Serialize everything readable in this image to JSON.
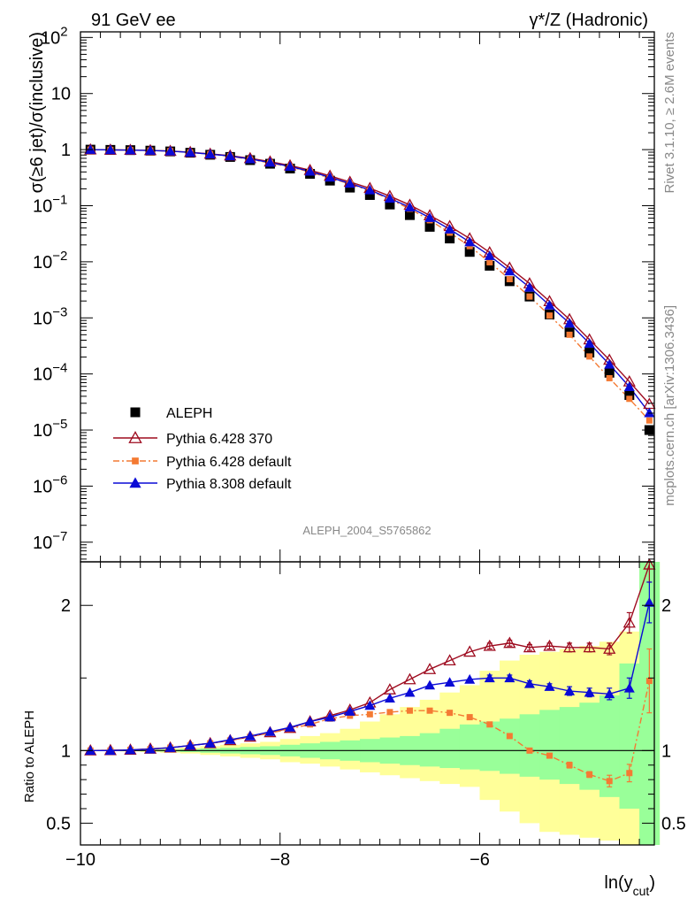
{
  "header": {
    "left": "91 GeV ee",
    "right": "γ*/Z (Hadronic)"
  },
  "side_text": {
    "rivet": "Rivet 3.1.10, ≥ 2.6M events",
    "mcplots": "mcplots.cern.ch [arXiv:1306.3436]"
  },
  "analysis_tag": "ALEPH_2004_S5765862",
  "chart_data": {
    "type": "line",
    "x_axis": {
      "label_base": "ln(y",
      "label_sub": "cut",
      "label_close": ")",
      "range": [
        -10.0,
        -4.25
      ],
      "ticks": [
        -10,
        -8,
        -6
      ],
      "tick_labels": [
        "−10",
        "−8",
        "−6"
      ]
    },
    "main_panel": {
      "ylabel": "σ(≥6 jet)/σ(inclusive)",
      "yscale": "log",
      "yrange_log10": [
        -7.35,
        2.1
      ],
      "ytick_exponents": [
        -7,
        -6,
        -5,
        -4,
        -3,
        -2,
        -1,
        0,
        1,
        2
      ],
      "ytick_labels": [
        {
          "base": "10",
          "exp": "−7"
        },
        {
          "base": "10",
          "exp": "−6"
        },
        {
          "base": "10",
          "exp": "−5"
        },
        {
          "base": "10",
          "exp": "−4"
        },
        {
          "base": "10",
          "exp": "−3"
        },
        {
          "base": "10",
          "exp": "−2"
        },
        {
          "base": "10",
          "exp": "−1"
        },
        {
          "base": "1",
          "exp": ""
        },
        {
          "base": "10",
          "exp": ""
        },
        {
          "base": "10",
          "exp": "2"
        }
      ]
    },
    "ratio_panel": {
      "ylabel": "Ratio to ALEPH",
      "yrange": [
        0.35,
        2.3
      ],
      "yticks": [
        0.5,
        1,
        2
      ],
      "ytick_labels": [
        "0.5",
        "1",
        "2"
      ],
      "reference": 1.0
    },
    "x": [
      -9.9,
      -9.7,
      -9.5,
      -9.3,
      -9.1,
      -8.9,
      -8.7,
      -8.5,
      -8.3,
      -8.1,
      -7.9,
      -7.7,
      -7.5,
      -7.3,
      -7.1,
      -6.9,
      -6.7,
      -6.5,
      -6.3,
      -6.1,
      -5.9,
      -5.7,
      -5.5,
      -5.3,
      -5.1,
      -4.9,
      -4.7,
      -4.5,
      -4.3
    ],
    "band": {
      "bin_edges": [
        -10.0,
        -9.8,
        -9.6,
        -9.4,
        -9.2,
        -9.0,
        -8.8,
        -8.6,
        -8.4,
        -8.2,
        -8.0,
        -7.8,
        -7.6,
        -7.4,
        -7.2,
        -7.0,
        -6.8,
        -6.6,
        -6.4,
        -6.2,
        -6.0,
        -5.8,
        -5.6,
        -5.4,
        -5.2,
        -5.0,
        -4.8,
        -4.6,
        -4.4,
        -4.2
      ],
      "green_low": [
        1.0,
        0.998,
        0.997,
        0.995,
        0.993,
        0.99,
        0.985,
        0.98,
        0.975,
        0.97,
        0.96,
        0.95,
        0.94,
        0.93,
        0.92,
        0.91,
        0.9,
        0.89,
        0.88,
        0.87,
        0.86,
        0.84,
        0.82,
        0.8,
        0.77,
        0.73,
        0.68,
        0.6,
        0.35
      ],
      "green_high": [
        1.0,
        1.002,
        1.003,
        1.005,
        1.007,
        1.01,
        1.015,
        1.02,
        1.025,
        1.03,
        1.04,
        1.05,
        1.06,
        1.07,
        1.08,
        1.09,
        1.1,
        1.12,
        1.15,
        1.18,
        1.2,
        1.22,
        1.25,
        1.28,
        1.3,
        1.33,
        1.38,
        1.6,
        2.3
      ],
      "yellow_low": [
        1.0,
        0.997,
        0.994,
        0.99,
        0.985,
        0.98,
        0.97,
        0.96,
        0.95,
        0.94,
        0.92,
        0.91,
        0.89,
        0.87,
        0.85,
        0.83,
        0.81,
        0.79,
        0.77,
        0.75,
        0.66,
        0.58,
        0.5,
        0.44,
        0.42,
        0.4,
        0.38,
        0.35,
        0.35
      ],
      "yellow_high": [
        1.0,
        1.003,
        1.006,
        1.01,
        1.015,
        1.02,
        1.03,
        1.04,
        1.05,
        1.06,
        1.08,
        1.1,
        1.12,
        1.15,
        1.2,
        1.25,
        1.3,
        1.35,
        1.4,
        1.45,
        1.55,
        1.62,
        1.66,
        1.68,
        1.7,
        1.72,
        1.75,
        1.82,
        2.3
      ]
    },
    "series": [
      {
        "name": "ALEPH",
        "marker": "square",
        "color": "#000000",
        "values": [
          1.0,
          0.99,
          0.98,
          0.96,
          0.93,
          0.88,
          0.81,
          0.74,
          0.65,
          0.56,
          0.46,
          0.37,
          0.28,
          0.21,
          0.155,
          0.105,
          0.068,
          0.042,
          0.026,
          0.015,
          0.0085,
          0.0045,
          0.0024,
          0.00115,
          0.00055,
          0.00024,
          0.000105,
          4.2e-05,
          1e-05
        ]
      },
      {
        "name": "Pythia 6.428 370",
        "marker": "open-triangle",
        "color": "#9e0b1f",
        "values": [
          1.0,
          0.99,
          0.985,
          0.97,
          0.945,
          0.9,
          0.84,
          0.78,
          0.7,
          0.61,
          0.52,
          0.43,
          0.34,
          0.265,
          0.205,
          0.148,
          0.103,
          0.067,
          0.043,
          0.026,
          0.0147,
          0.0078,
          0.0041,
          0.00197,
          0.00094,
          0.00041,
          0.000178,
          7.3e-05,
          2.9e-05
        ],
        "ratio": [
          1.0,
          1.002,
          1.005,
          1.012,
          1.02,
          1.035,
          1.05,
          1.07,
          1.095,
          1.125,
          1.155,
          1.2,
          1.24,
          1.28,
          1.33,
          1.42,
          1.49,
          1.56,
          1.62,
          1.68,
          1.72,
          1.74,
          1.71,
          1.72,
          1.71,
          1.71,
          1.7,
          1.88,
          2.28
        ],
        "ratio_err": [
          0,
          0,
          0,
          0,
          0,
          0,
          0,
          0,
          0,
          0,
          0,
          0,
          0,
          0,
          0,
          0,
          0,
          0,
          0,
          0,
          0.02,
          0.02,
          0.02,
          0.02,
          0.03,
          0.03,
          0.04,
          0.07,
          0.12
        ]
      },
      {
        "name": "Pythia 6.428 default",
        "marker": "square-small",
        "color": "#f47a33",
        "dashed": true,
        "values": [
          1.0,
          0.99,
          0.98,
          0.965,
          0.94,
          0.89,
          0.83,
          0.76,
          0.67,
          0.58,
          0.49,
          0.4,
          0.31,
          0.245,
          0.185,
          0.13,
          0.088,
          0.055,
          0.033,
          0.019,
          0.0098,
          0.0049,
          0.0024,
          0.0011,
          0.0005,
          0.000205,
          8.4e-05,
          3.6e-05,
          1.48e-05
        ],
        "ratio": [
          1.0,
          1.0,
          1.005,
          1.01,
          1.02,
          1.035,
          1.05,
          1.07,
          1.095,
          1.12,
          1.15,
          1.18,
          1.22,
          1.24,
          1.25,
          1.265,
          1.275,
          1.275,
          1.26,
          1.23,
          1.18,
          1.1,
          1.0,
          0.965,
          0.9,
          0.835,
          0.79,
          0.845,
          1.48
        ],
        "ratio_err": [
          0,
          0,
          0,
          0,
          0,
          0,
          0,
          0,
          0,
          0,
          0,
          0,
          0,
          0,
          0,
          0,
          0,
          0,
          0,
          0,
          0,
          0,
          0.01,
          0.01,
          0.02,
          0.02,
          0.04,
          0.06,
          0.22
        ]
      },
      {
        "name": "Pythia 8.308 default",
        "marker": "filled-triangle",
        "color": "#0a0ad6",
        "values": [
          1.0,
          0.99,
          0.98,
          0.965,
          0.94,
          0.89,
          0.83,
          0.77,
          0.68,
          0.59,
          0.5,
          0.41,
          0.32,
          0.25,
          0.19,
          0.135,
          0.094,
          0.061,
          0.038,
          0.0225,
          0.0128,
          0.0068,
          0.0035,
          0.00168,
          0.0008,
          0.00035,
          0.000148,
          5.9e-05,
          2.02e-05
        ],
        "ratio": [
          1.0,
          1.0,
          1.005,
          1.01,
          1.02,
          1.035,
          1.05,
          1.075,
          1.1,
          1.13,
          1.16,
          1.2,
          1.23,
          1.27,
          1.31,
          1.36,
          1.4,
          1.45,
          1.47,
          1.49,
          1.5,
          1.5,
          1.46,
          1.44,
          1.41,
          1.4,
          1.39,
          1.43,
          2.02
        ],
        "ratio_err": [
          0,
          0,
          0,
          0,
          0,
          0,
          0,
          0,
          0,
          0,
          0,
          0,
          0,
          0,
          0,
          0,
          0,
          0,
          0,
          0,
          0.02,
          0.02,
          0.02,
          0.02,
          0.03,
          0.03,
          0.04,
          0.07,
          0.14
        ]
      }
    ],
    "legend": {
      "placement": "bottom-left",
      "entries": [
        "ALEPH",
        "Pythia 6.428 370",
        "Pythia 6.428 default",
        "Pythia 8.308 default"
      ]
    }
  }
}
